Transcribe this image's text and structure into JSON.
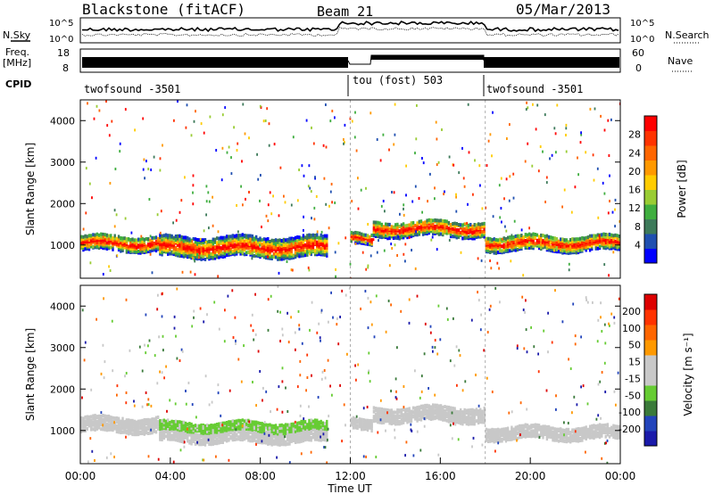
{
  "header": {
    "title": "Blackstone (fitACF)",
    "beam": "Beam 21",
    "date": "05/Mar/2013"
  },
  "top_panels": {
    "nsky_label": "N.Sky",
    "nsearch_label": "N.Search",
    "noise_ticks": [
      "10^5",
      "10^0"
    ],
    "freq_label_1": "Freq.",
    "freq_label_2": "[MHz]",
    "freq_ticks": [
      "18",
      "8"
    ],
    "nave_label": "Nave",
    "nave_ticks": [
      "60",
      "0"
    ],
    "cpid_label": "CPID",
    "cpid_segments": [
      {
        "name": "twofsound -3501",
        "start_hour": 0
      },
      {
        "name": "tou (fost) 503",
        "start_hour": 12
      },
      {
        "name": "twofsound -3501",
        "start_hour": 18
      }
    ]
  },
  "chart_data": [
    {
      "type": "heatmap",
      "name": "power",
      "ylabel": "Slant Range [km]",
      "y_ticks": [
        1000,
        2000,
        3000,
        4000
      ],
      "ylim": [
        200,
        4500
      ],
      "xlim": [
        0,
        24
      ],
      "colorbar": {
        "label": "Power [dB]",
        "ticks": [
          4,
          8,
          12,
          16,
          20,
          24,
          28
        ],
        "colors": [
          "#0000ff",
          "#1f4fb0",
          "#3d7a5a",
          "#3fae3f",
          "#99cc33",
          "#ffcc00",
          "#ff9900",
          "#ff6600",
          "#ff3300",
          "#ff0000"
        ]
      },
      "features": [
        {
          "start_hour": 0.0,
          "end_hour": 3.5,
          "range_km": 1050,
          "width_km": 350
        },
        {
          "start_hour": 3.5,
          "end_hour": 11.0,
          "range_km": 950,
          "width_km": 450
        },
        {
          "start_hour": 12.0,
          "end_hour": 13.0,
          "range_km": 1150,
          "width_km": 250
        },
        {
          "start_hour": 13.0,
          "end_hour": 18.0,
          "range_km": 1400,
          "width_km": 350
        },
        {
          "start_hour": 18.0,
          "end_hour": 24.0,
          "range_km": 1050,
          "width_km": 350
        }
      ]
    },
    {
      "type": "heatmap",
      "name": "velocity",
      "ylabel": "Slant Range [km]",
      "xlabel": "Time UT",
      "x_ticks": [
        "00:00",
        "04:00",
        "08:00",
        "12:00",
        "16:00",
        "20:00",
        "00:00"
      ],
      "y_ticks": [
        1000,
        2000,
        3000,
        4000
      ],
      "ylim": [
        200,
        4500
      ],
      "xlim": [
        0,
        24
      ],
      "colorbar": {
        "label": "Velocity [m s⁻¹]",
        "ticks": [
          200,
          100,
          50,
          15,
          -15,
          -50,
          -100,
          -200
        ],
        "colors": [
          "#1a1aaa",
          "#2244bb",
          "#3a7a3a",
          "#66cc33",
          "#c8c8c8",
          "#c8c8c8",
          "#ff9900",
          "#ff6600",
          "#ff3300",
          "#dd0000"
        ]
      },
      "features": [
        {
          "start_hour": 0.0,
          "end_hour": 3.5,
          "range_km": 1150,
          "width_km": 350
        },
        {
          "start_hour": 3.5,
          "end_hour": 11.0,
          "range_km": 950,
          "width_km": 450
        },
        {
          "start_hour": 12.0,
          "end_hour": 13.0,
          "range_km": 1150,
          "width_km": 250
        },
        {
          "start_hour": 13.0,
          "end_hour": 18.0,
          "range_km": 1400,
          "width_km": 350
        },
        {
          "start_hour": 18.0,
          "end_hour": 24.0,
          "range_km": 950,
          "width_km": 300
        }
      ]
    }
  ]
}
